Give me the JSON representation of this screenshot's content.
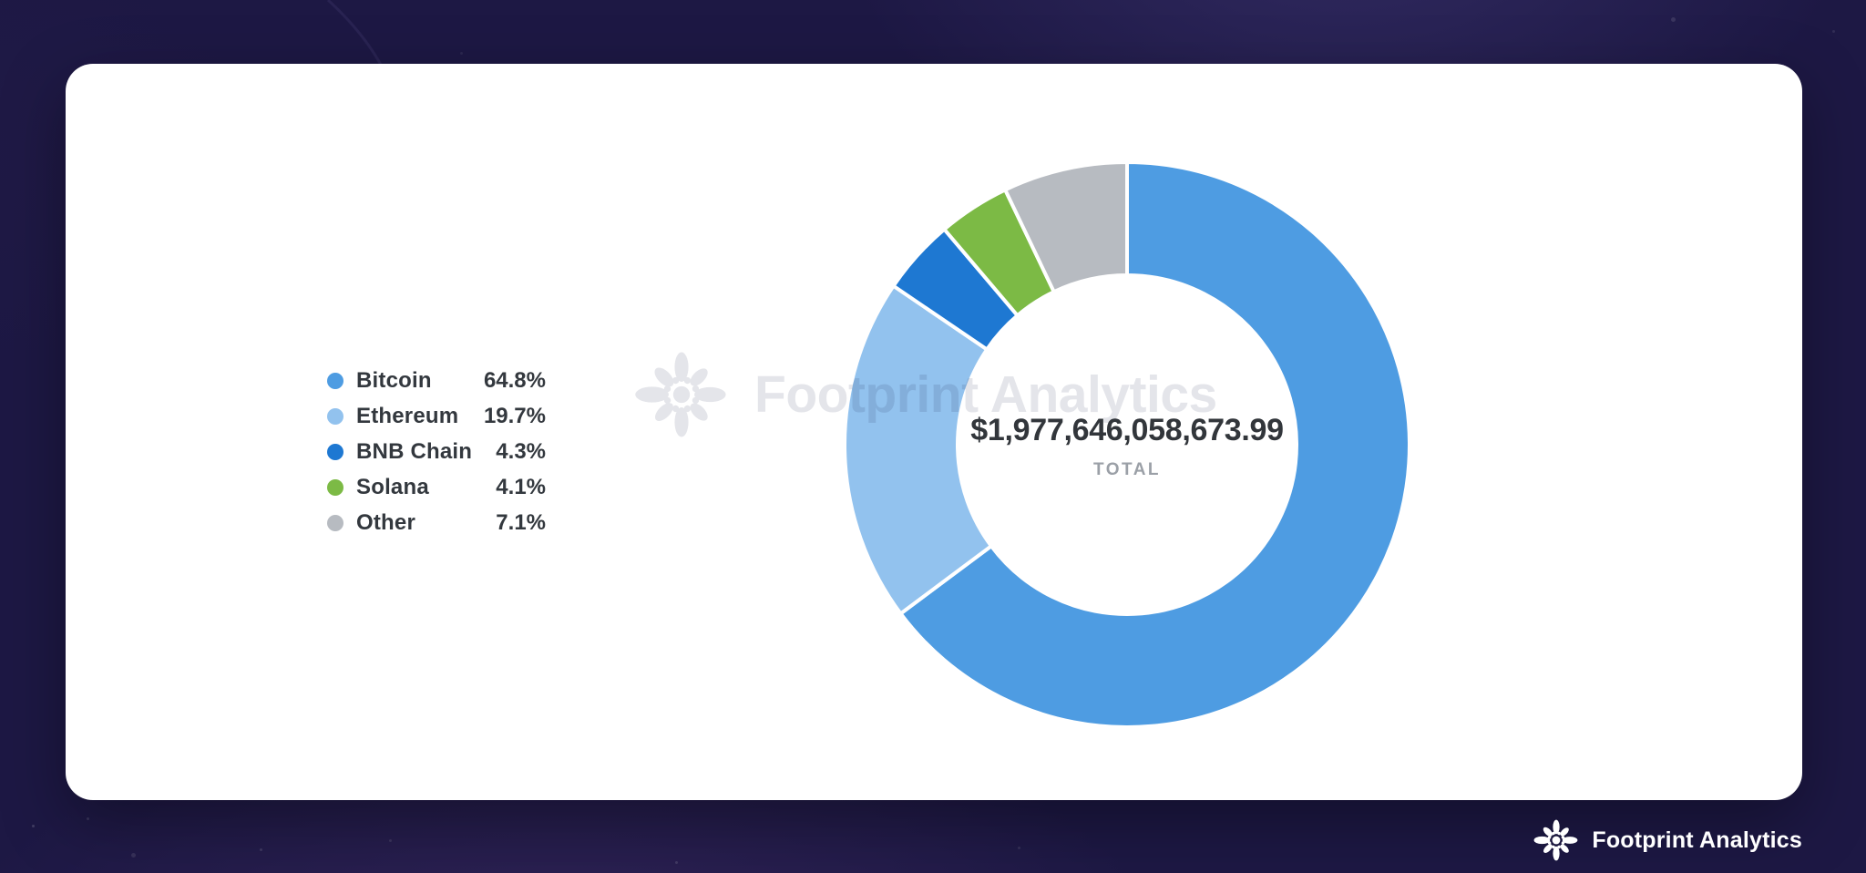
{
  "theme": {
    "background": "#1D1844",
    "card_background": "#FFFFFF",
    "text_dark": "#33383E",
    "text_muted": "#9BA0A7",
    "watermark_color": "#E4E5EA"
  },
  "legend": {
    "items": [
      {
        "label": "Bitcoin",
        "value": "64.8%",
        "color": "#4E9CE2"
      },
      {
        "label": "Ethereum",
        "value": "19.7%",
        "color": "#92C2EE"
      },
      {
        "label": "BNB Chain",
        "value": "4.3%",
        "color": "#1E78D2"
      },
      {
        "label": "Solana",
        "value": "4.1%",
        "color": "#7CBA45"
      },
      {
        "label": "Other",
        "value": "7.1%",
        "color": "#B7BBC1"
      }
    ]
  },
  "chart_data": {
    "type": "pie",
    "subtype": "donut",
    "categories": [
      "Bitcoin",
      "Ethereum",
      "BNB Chain",
      "Solana",
      "Other"
    ],
    "values": [
      64.8,
      19.7,
      4.3,
      4.1,
      7.1
    ],
    "colors": [
      "#4E9CE2",
      "#92C2EE",
      "#1E78D2",
      "#7CBA45",
      "#B7BBC1"
    ],
    "start_angle_deg": 0,
    "direction": "clockwise",
    "inner_radius_ratio": 0.6,
    "slice_gap_stroke": "#FFFFFF",
    "legend_position": "left",
    "center": {
      "total": "$1,977,646,058,673.99",
      "label": "TOTAL"
    }
  },
  "watermark": {
    "text": "Footprint Analytics"
  },
  "footer": {
    "brand": "Footprint Analytics"
  }
}
